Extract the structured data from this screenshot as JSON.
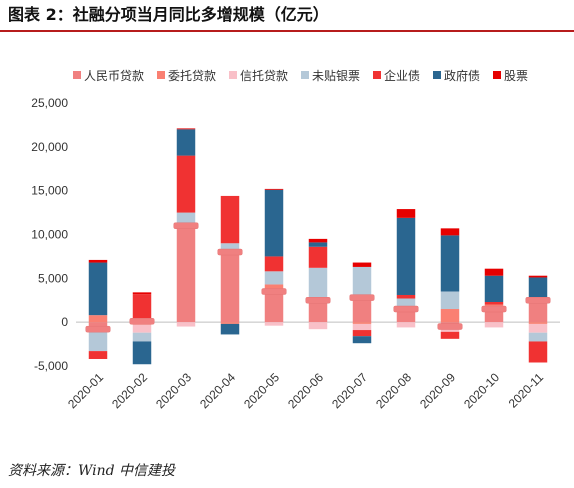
{
  "title": "图表 2：社融分项当月同比多增规模（亿元）",
  "source": "资料来源：Wind    中信建投",
  "chart_data": {
    "type": "bar",
    "stacked": true,
    "categories": [
      "2020-01",
      "2020-02",
      "2020-03",
      "2020-04",
      "2020-05",
      "2020-06",
      "2020-07",
      "2020-08",
      "2020-09",
      "2020-10",
      "2020-11"
    ],
    "ylim": [
      -5000,
      25000
    ],
    "yticks": [
      -5000,
      0,
      5000,
      10000,
      15000,
      20000,
      25000
    ],
    "ytick_labels": [
      "-5,000",
      "0",
      "5,000",
      "10,000",
      "15,000",
      "20,000",
      "25,000"
    ],
    "legend_position": "top",
    "series": [
      {
        "name": "人民币贷款",
        "color": "#f08080",
        "values": [
          -800,
          100,
          11000,
          8000,
          3500,
          2500,
          2800,
          1500,
          -500,
          1500,
          2500
        ]
      },
      {
        "name": "委托贷款",
        "color": "#fa8072",
        "values": [
          800,
          -300,
          0,
          -200,
          800,
          200,
          -200,
          0,
          1500,
          500,
          -200
        ]
      },
      {
        "name": "信托贷款",
        "color": "#f9c0c8",
        "values": [
          -100,
          -900,
          -500,
          0,
          -400,
          -800,
          -700,
          -600,
          -600,
          -600,
          -1000
        ]
      },
      {
        "name": "未贴银票",
        "color": "#b4c8d8",
        "values": [
          -2400,
          -1000,
          1500,
          1000,
          1500,
          3500,
          3500,
          1200,
          2000,
          0,
          -1000
        ]
      },
      {
        "name": "企业债",
        "color": "#f03232",
        "values": [
          -900,
          3100,
          6500,
          5400,
          1700,
          2400,
          -700,
          400,
          -800,
          300,
          -2400
        ]
      },
      {
        "name": "政府债",
        "color": "#2a6690",
        "values": [
          6000,
          -2600,
          3000,
          -1200,
          7600,
          500,
          -800,
          8800,
          6400,
          3000,
          2600
        ]
      },
      {
        "name": "股票",
        "color": "#e60000",
        "values": [
          300,
          200,
          100,
          0,
          100,
          400,
          500,
          1000,
          800,
          800,
          200
        ]
      }
    ]
  }
}
